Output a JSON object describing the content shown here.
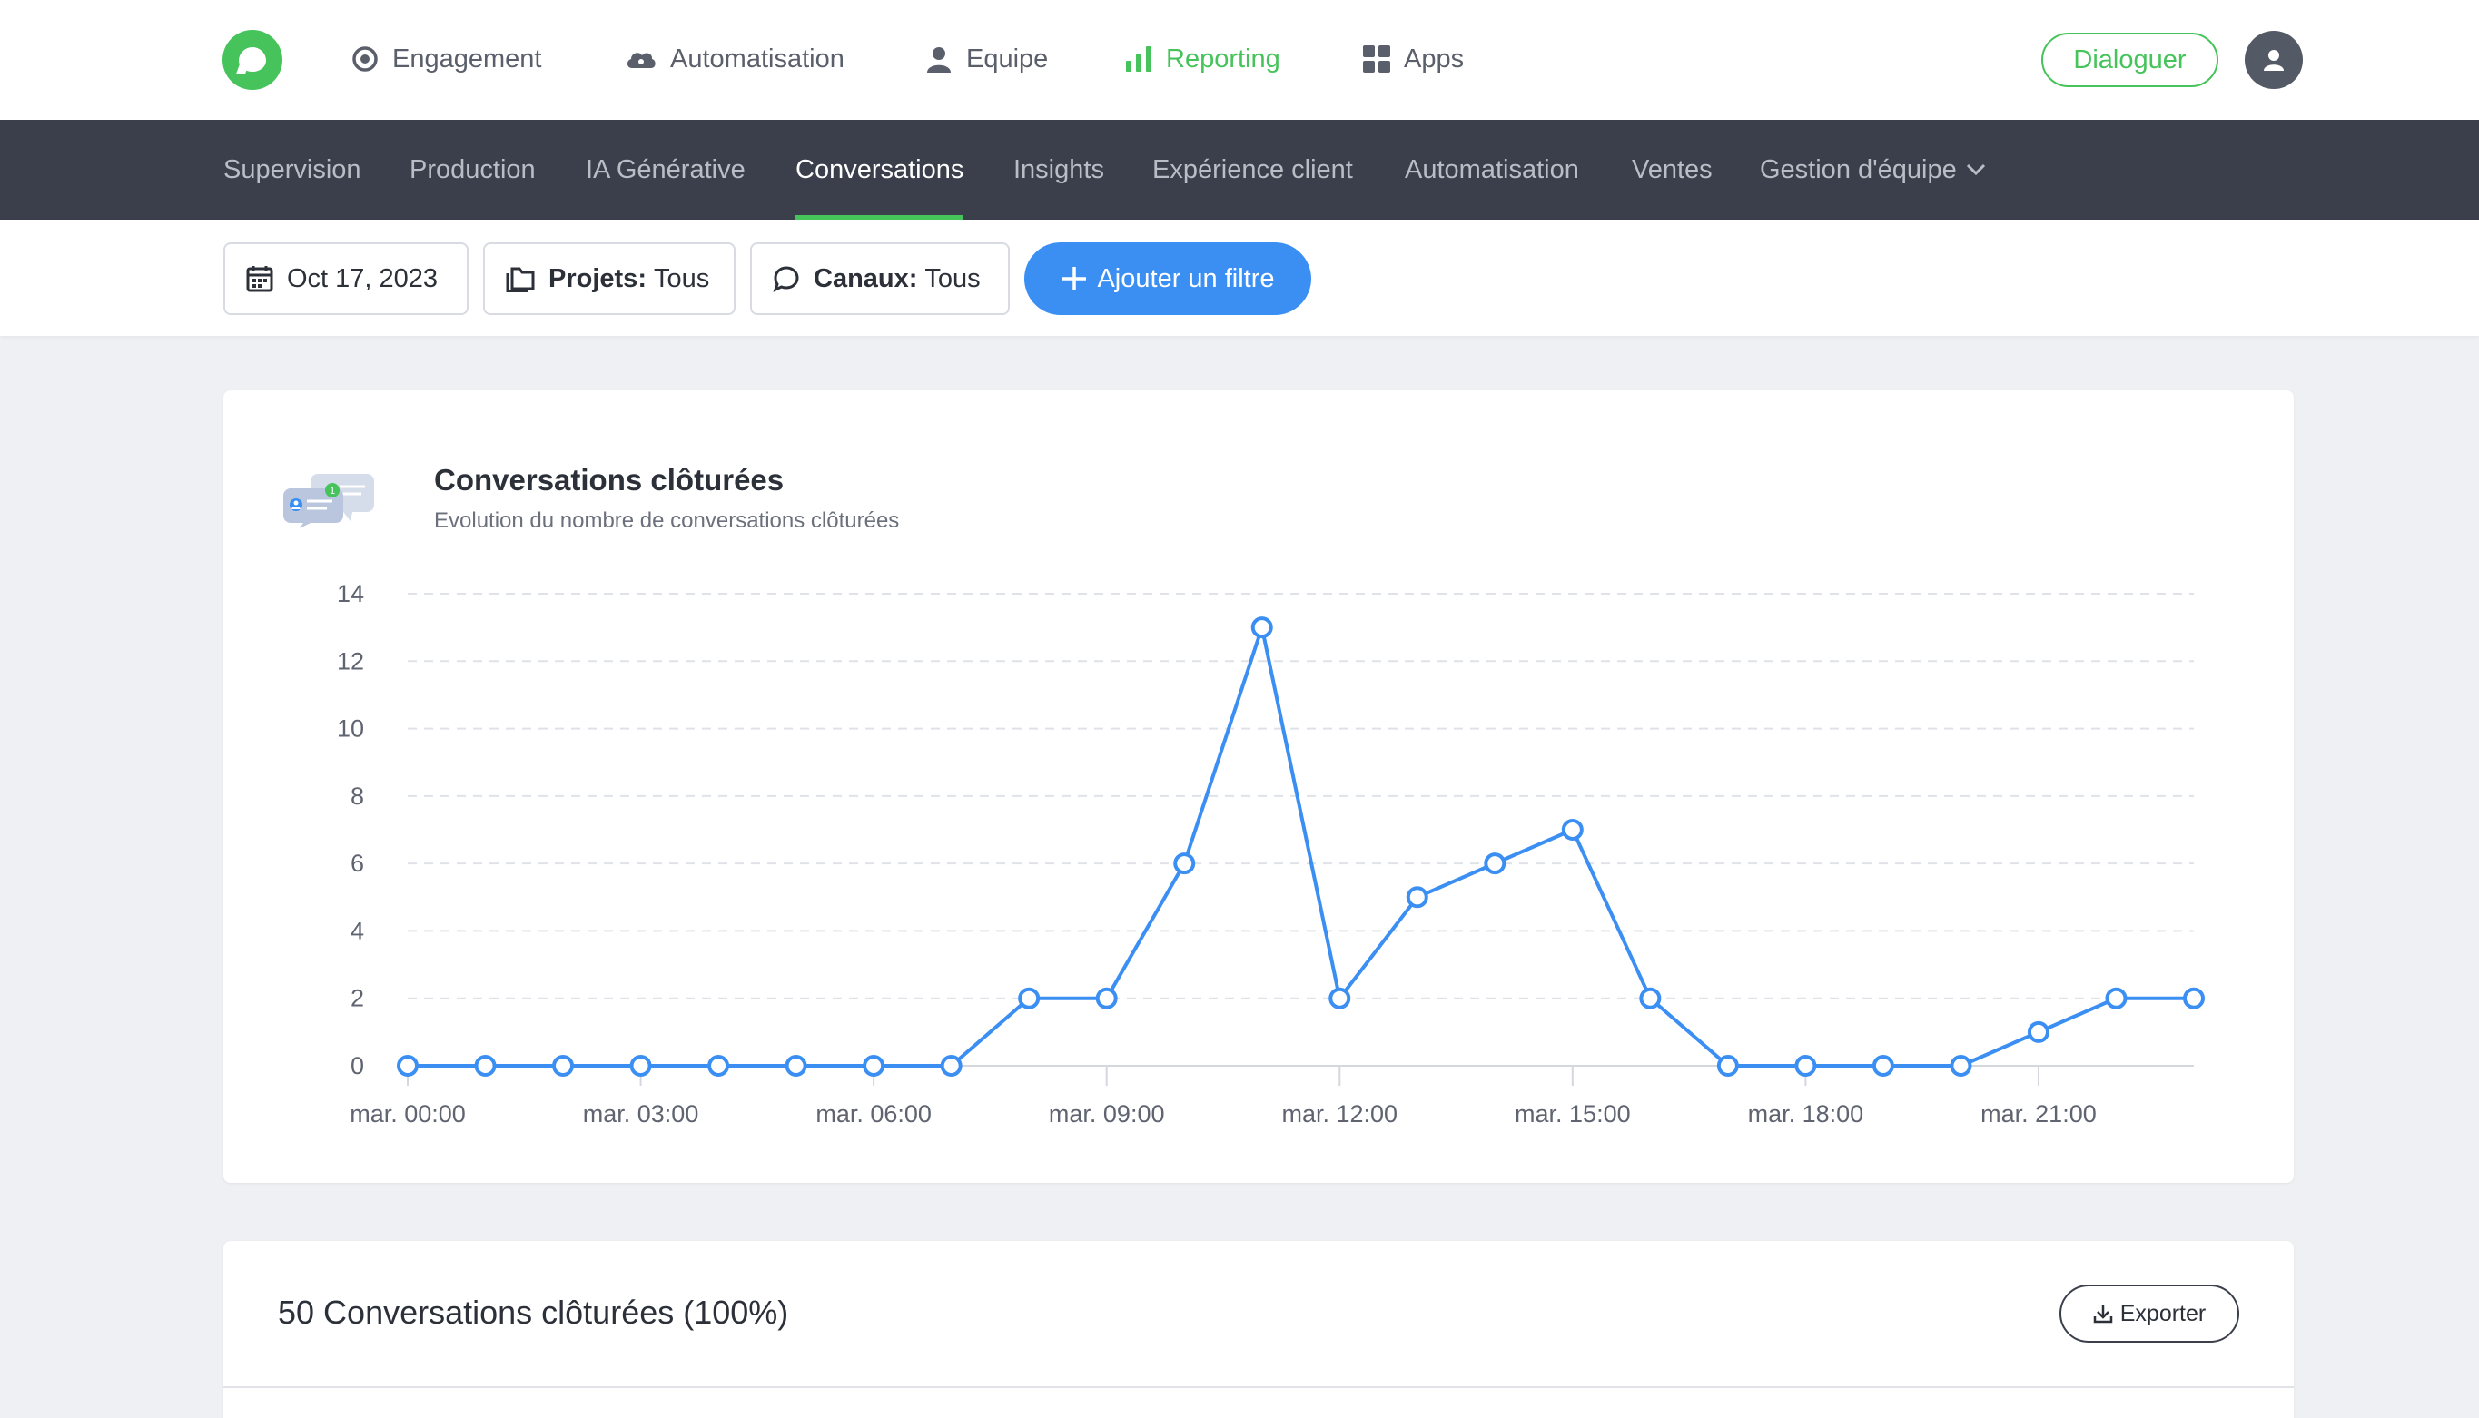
{
  "topnav": {
    "items": [
      {
        "label": "Engagement",
        "icon": "target-icon"
      },
      {
        "label": "Automatisation",
        "icon": "cloud-icon"
      },
      {
        "label": "Equipe",
        "icon": "person-icon"
      },
      {
        "label": "Reporting",
        "icon": "bar-chart-icon",
        "active": true
      },
      {
        "label": "Apps",
        "icon": "grid-icon"
      }
    ],
    "dialoguer_label": "Dialoguer"
  },
  "subnav": {
    "items": [
      {
        "label": "Supervision"
      },
      {
        "label": "Production"
      },
      {
        "label": "IA Générative"
      },
      {
        "label": "Conversations",
        "active": true
      },
      {
        "label": "Insights"
      },
      {
        "label": "Expérience client"
      },
      {
        "label": "Automatisation"
      },
      {
        "label": "Ventes"
      },
      {
        "label": "Gestion d'équipe"
      }
    ]
  },
  "filters": {
    "date": "Oct 17, 2023",
    "projects_key": "Projets:",
    "projects_value": "Tous",
    "channels_key": "Canaux:",
    "channels_value": "Tous",
    "add_filter_label": "Ajouter un filtre"
  },
  "chart_card": {
    "title": "Conversations clôturées",
    "subtitle": "Evolution du nombre de conversations clôturées"
  },
  "chart_data": {
    "type": "line",
    "title": "Conversations clôturées",
    "subtitle": "Evolution du nombre de conversations clôturées",
    "x": [
      0,
      1,
      2,
      3,
      4,
      5,
      6,
      7,
      8,
      9,
      10,
      11,
      12,
      13,
      14,
      15,
      16,
      17,
      18,
      19,
      20,
      21,
      22,
      23
    ],
    "x_tick_labels": [
      {
        "x": 0,
        "label": "mar. 00:00"
      },
      {
        "x": 3,
        "label": "mar. 03:00"
      },
      {
        "x": 6,
        "label": "mar. 06:00"
      },
      {
        "x": 9,
        "label": "mar. 09:00"
      },
      {
        "x": 12,
        "label": "mar. 12:00"
      },
      {
        "x": 15,
        "label": "mar. 15:00"
      },
      {
        "x": 18,
        "label": "mar. 18:00"
      },
      {
        "x": 21,
        "label": "mar. 21:00"
      }
    ],
    "series": [
      {
        "values": [
          0,
          0,
          0,
          0,
          0,
          0,
          0,
          0,
          2,
          2,
          6,
          13,
          2,
          5,
          6,
          7,
          2,
          0,
          0,
          0,
          0,
          1,
          2,
          2
        ],
        "color": "#3b8ff2"
      }
    ],
    "ylim": [
      0,
      14
    ],
    "y_ticks": [
      0,
      2,
      4,
      6,
      8,
      10,
      12,
      14
    ],
    "grid": true,
    "xlabel": "",
    "ylabel": ""
  },
  "table_card": {
    "title": "50 Conversations clôturées (100%)",
    "export_label": "Exporter"
  },
  "colors": {
    "accent_green": "#46c35a",
    "accent_blue": "#3b8ff2",
    "subnav_bg": "#3a3f4b"
  }
}
